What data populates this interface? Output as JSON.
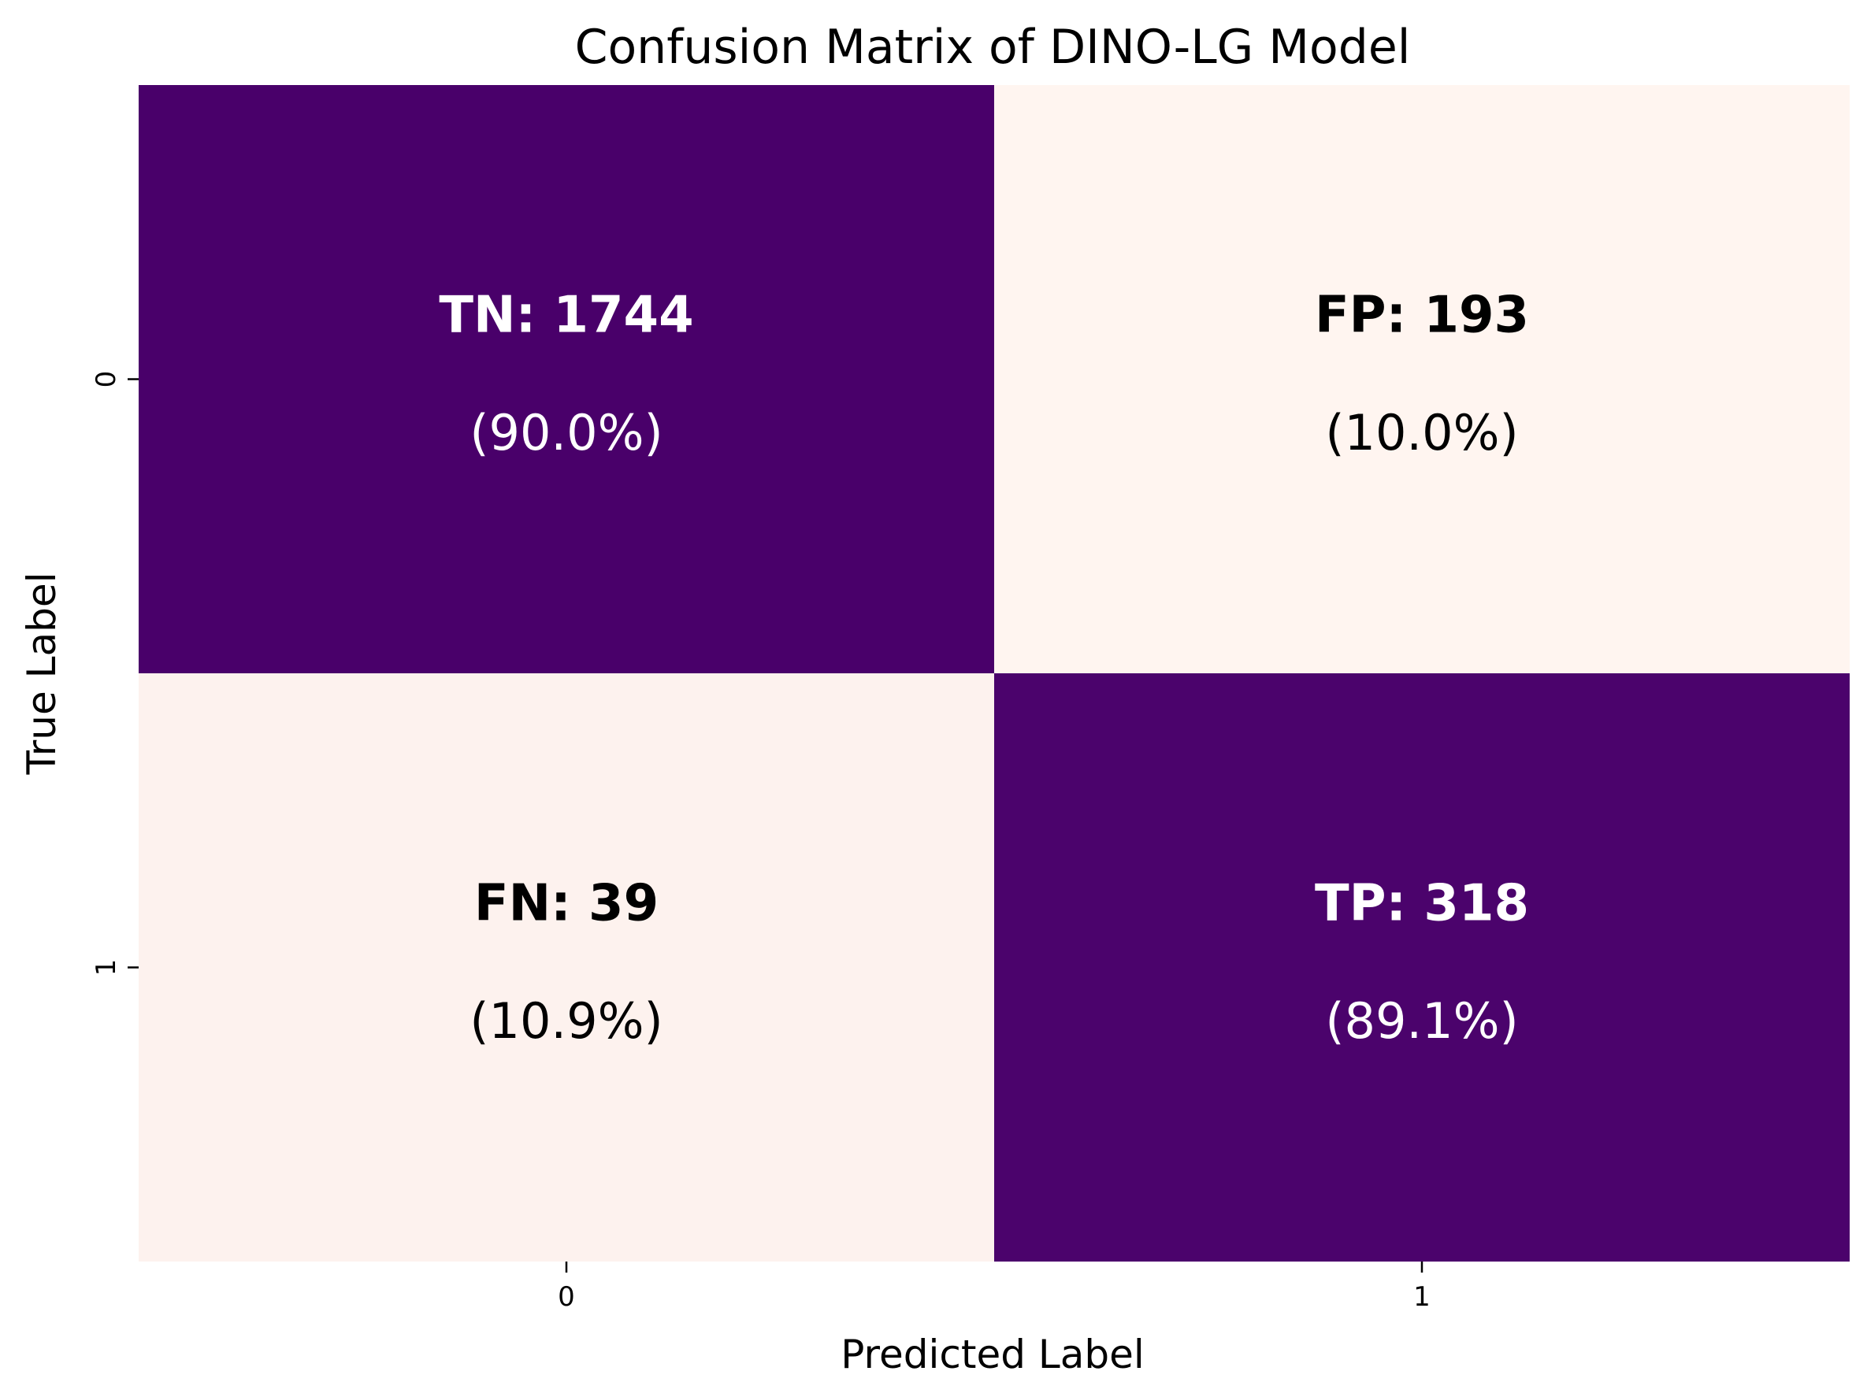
{
  "chart_data": {
    "type": "heatmap",
    "title": "Confusion Matrix of DINO-LG Model",
    "xlabel": "Predicted Label",
    "ylabel": "True Label",
    "x_categories": [
      "0",
      "1"
    ],
    "y_categories": [
      "0",
      "1"
    ],
    "cells": [
      {
        "row": 0,
        "col": 0,
        "label": "TN: 1744",
        "percent": "(90.0%)",
        "count": 1744,
        "fraction": 0.9
      },
      {
        "row": 0,
        "col": 1,
        "label": "FP: 193",
        "percent": "(10.0%)",
        "count": 193,
        "fraction": 0.1
      },
      {
        "row": 1,
        "col": 0,
        "label": "FN: 39",
        "percent": "(10.9%)",
        "count": 39,
        "fraction": 0.109
      },
      {
        "row": 1,
        "col": 1,
        "label": "TP: 318",
        "percent": "(89.1%)",
        "count": 318,
        "fraction": 0.891
      }
    ],
    "colormap": {
      "low": "#fff5f0",
      "high": "#49006a"
    },
    "colorbar": false,
    "grid": false
  }
}
